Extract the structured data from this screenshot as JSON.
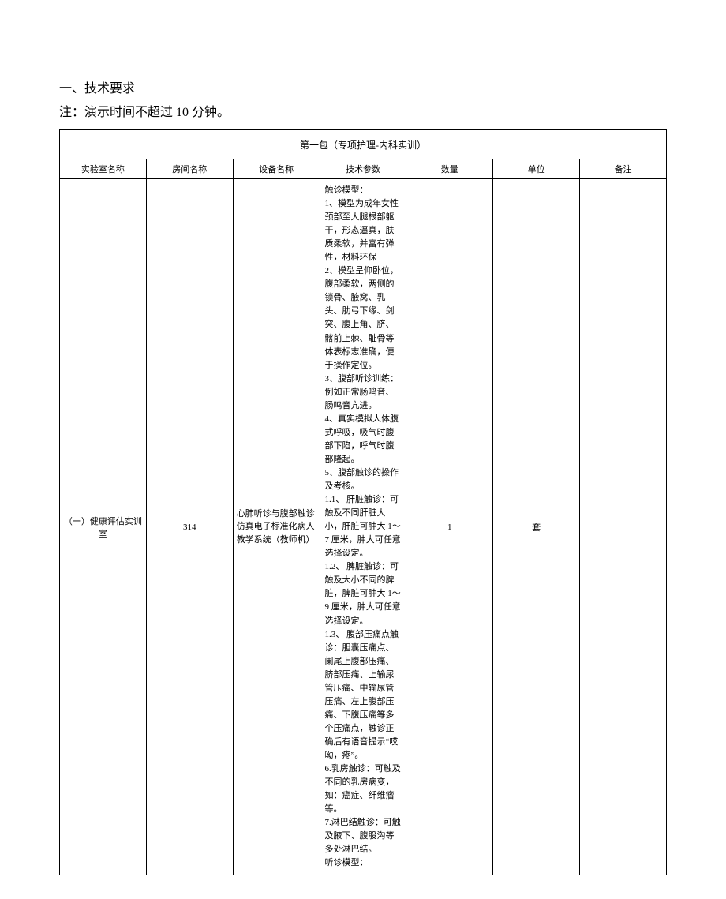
{
  "headings": {
    "h1": "一、技术要求",
    "h2": "注：演示时间不超过 10 分钟。"
  },
  "package_title": "第一包（专项护理-内科实训）",
  "columns": {
    "lab": "实验室名称",
    "room": "房间名称",
    "equip": "设备名称",
    "spec": "技术参数",
    "qty": "数量",
    "unit": "单位",
    "note": "备注"
  },
  "row": {
    "lab": "（一）健康评估实训室",
    "room": "314",
    "equip": "心肺听诊与腹部触诊仿真电子标准化病人教学系统（教师机）",
    "spec_lines": [
      "触诊模型：",
      "1、模型为成年女性颈部至大腿根部躯干，形态逼真，肤质柔软，并富有弹性，材料环保",
      "2、模型呈仰卧位，腹部柔软，两侧的锁骨、腋窝、乳头、肋弓下缘、剑突、腹上角、脐、髂前上棘、耻骨等体表标志准确，便于操作定位。",
      "3、腹部听诊训练：例如正常肠鸣音、肠鸣音亢进。",
      "4、真实模拟人体腹式呼吸，吸气时腹部下陷，呼气时腹部隆起。",
      "5、腹部触诊的操作及考核。",
      "1.1、 肝脏触诊：可触及不同肝脏大小，肝脏可肿大 1～7 厘米，肿大可任意选择设定。",
      "1.2、 脾脏触诊：可触及大小不同的脾脏，脾脏可肿大 1～9 厘米，肿大可任意选择设定。",
      "1.3、 腹部压痛点触诊：胆囊压痛点、阑尾上腹部压痛、脐部压痛、上输尿管压痛、中输尿管压痛、左上腹部压痛、下腹压痛等多个压痛点，触诊正确后有语音提示“哎呦，疼”。",
      "6.乳房触诊：可触及不同的乳房病变，如：癌症、纤维瘤等。",
      "7.淋巴结触诊：可触及腋下、腹股沟等多处淋巴结。",
      "听诊模型："
    ],
    "qty": "1",
    "unit": "套",
    "note": ""
  },
  "colors": {
    "text": "#000000",
    "border": "#000000",
    "background": "#ffffff"
  }
}
